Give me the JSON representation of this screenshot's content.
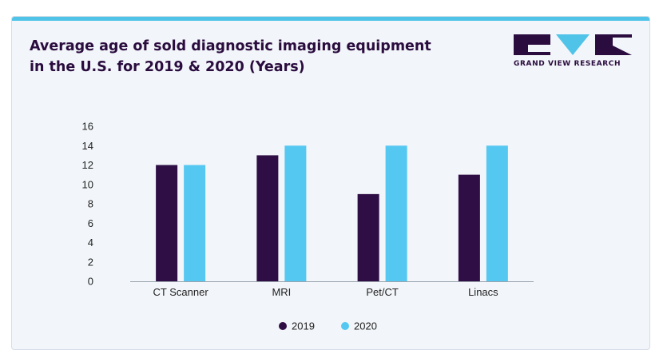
{
  "header": {
    "title_line1": "Average age of sold diagnostic imaging equipment",
    "title_line2": "in the U.S. for 2019 & 2020 (Years)"
  },
  "logo": {
    "text": "GRAND VIEW RESEARCH",
    "color": "#2a0c3f",
    "accent": "#4fc3e8"
  },
  "colors": {
    "accent_bar": "#4fc3e8",
    "card_background": "#f2f5f9"
  },
  "chart_data": {
    "type": "bar",
    "title": "Average age of sold diagnostic imaging equipment in the U.S. for 2019 & 2020 (Years)",
    "categories": [
      "CT Scanner",
      "MRI",
      "Pet/CT",
      "Linacs"
    ],
    "series": [
      {
        "name": "2019",
        "color": "#2f0d45",
        "values": [
          12,
          13,
          9,
          11
        ]
      },
      {
        "name": "2020",
        "color": "#55c8f2",
        "values": [
          12,
          14,
          14,
          14
        ]
      }
    ],
    "yticks": [
      0,
      2,
      4,
      6,
      8,
      10,
      12,
      14,
      16
    ],
    "ylim": [
      0,
      16
    ],
    "xlabel": "",
    "ylabel": "",
    "grid": false,
    "legend_position": "bottom-center"
  }
}
